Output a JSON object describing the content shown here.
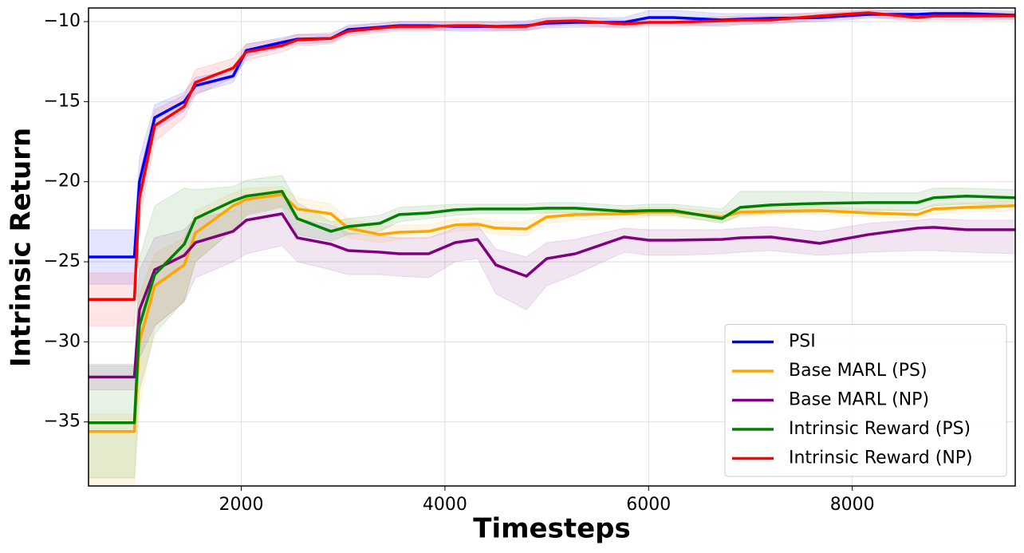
{
  "chart_data": {
    "type": "line",
    "xlabel": "Timesteps",
    "ylabel": "Intrinsic Return",
    "xlim": [
      500,
      9600
    ],
    "ylim": [
      -39,
      -9.15
    ],
    "xticks": [
      2000,
      4000,
      6000,
      8000
    ],
    "yticks": [
      {
        "value": -10,
        "label": "−10"
      },
      {
        "value": -15,
        "label": "−15"
      },
      {
        "value": -20,
        "label": "−20"
      },
      {
        "value": -25,
        "label": "−25"
      },
      {
        "value": -30,
        "label": "−30"
      },
      {
        "value": -35,
        "label": "−35"
      }
    ],
    "grid": true,
    "legend": "lower right",
    "x": [
      500,
      950,
      1000,
      1150,
      1440,
      1550,
      1920,
      2050,
      2400,
      2550,
      2880,
      3050,
      3360,
      3550,
      3840,
      4100,
      4320,
      4500,
      4800,
      5000,
      5280,
      5760,
      6000,
      6240,
      6720,
      6900,
      7200,
      7680,
      8160,
      8640,
      8800,
      9120,
      9600
    ],
    "series": [
      {
        "name": "PSI",
        "color": "#0000ff",
        "values": [
          -24.7,
          -24.7,
          -20,
          -16,
          -15.0,
          -14.0,
          -13.4,
          -11.8,
          -11.3,
          -11.1,
          -11.05,
          -10.5,
          -10.35,
          -10.25,
          -10.25,
          -10.3,
          -10.3,
          -10.3,
          -10.25,
          -10.1,
          -10.05,
          -10.05,
          -9.75,
          -9.75,
          -9.9,
          -9.85,
          -9.8,
          -9.75,
          -9.55,
          -9.55,
          -9.5,
          -9.5,
          -9.6
        ],
        "lower": [
          -26.4,
          -26.4,
          -21.5,
          -16.8,
          -15.6,
          -14.5,
          -13.8,
          -12.2,
          -11.6,
          -11.4,
          -11.3,
          -10.8,
          -10.6,
          -10.5,
          -10.5,
          -10.6,
          -10.6,
          -10.6,
          -10.55,
          -10.4,
          -10.35,
          -10.35,
          -10.2,
          -10.2,
          -10.3,
          -10.2,
          -10.1,
          -10.0,
          -9.8,
          -9.8,
          -9.75,
          -9.75,
          -9.85
        ],
        "upper": [
          -23.0,
          -23.0,
          -18.5,
          -15.2,
          -14.4,
          -13.5,
          -13.0,
          -11.4,
          -11.0,
          -10.8,
          -10.8,
          -10.2,
          -10.1,
          -10.0,
          -10.0,
          -10.0,
          -10.0,
          -10.0,
          -9.95,
          -9.8,
          -9.75,
          -9.75,
          -9.3,
          -9.3,
          -9.5,
          -9.5,
          -9.5,
          -9.5,
          -9.3,
          -9.3,
          -9.25,
          -9.25,
          -9.35
        ]
      },
      {
        "name": "Base MARL (PS)",
        "color": "#ffa500",
        "values": [
          -35.6,
          -35.6,
          -30,
          -26.5,
          -25.2,
          -23.2,
          -21.5,
          -21.1,
          -20.8,
          -21.7,
          -22.0,
          -22.9,
          -23.3,
          -23.15,
          -23.1,
          -22.7,
          -22.65,
          -22.9,
          -22.95,
          -22.2,
          -22.05,
          -22.0,
          -21.9,
          -21.9,
          -22.2,
          -21.9,
          -21.85,
          -21.8,
          -21.95,
          -22.05,
          -21.7,
          -21.6,
          -21.5
        ],
        "lower": [
          -39.5,
          -39.5,
          -34,
          -29,
          -27.5,
          -25,
          -23,
          -22,
          -21.5,
          -22.3,
          -22.5,
          -23.5,
          -23.8,
          -23.6,
          -23.5,
          -23.1,
          -23.0,
          -23.3,
          -23.4,
          -22.6,
          -22.4,
          -22.3,
          -22.2,
          -22.2,
          -22.5,
          -22.2,
          -22.1,
          -22.05,
          -22.2,
          -22.3,
          -22.0,
          -21.9,
          -21.8
        ],
        "upper": [
          -34.5,
          -34.5,
          -27,
          -24.5,
          -23.5,
          -21.8,
          -20.7,
          -20.4,
          -20.3,
          -21.0,
          -21.4,
          -22.3,
          -22.8,
          -22.7,
          -22.7,
          -22.3,
          -22.3,
          -22.5,
          -22.5,
          -21.8,
          -21.7,
          -21.7,
          -21.6,
          -21.6,
          -21.9,
          -21.6,
          -21.6,
          -21.55,
          -21.7,
          -21.8,
          -21.4,
          -21.3,
          -21.2
        ]
      },
      {
        "name": "Base MARL (NP)",
        "color": "#800080",
        "values": [
          -32.2,
          -32.2,
          -28,
          -25.5,
          -24.6,
          -23.8,
          -23.1,
          -22.4,
          -22.0,
          -23.5,
          -23.9,
          -24.3,
          -24.4,
          -24.5,
          -24.5,
          -23.8,
          -23.6,
          -25.2,
          -25.9,
          -24.8,
          -24.5,
          -23.45,
          -23.65,
          -23.65,
          -23.6,
          -23.5,
          -23.45,
          -23.85,
          -23.3,
          -22.9,
          -22.85,
          -23.0,
          -23.0
        ],
        "lower": [
          -33,
          -33,
          -31,
          -29,
          -27.5,
          -26,
          -25,
          -24.5,
          -24,
          -25,
          -25.5,
          -25.8,
          -25.8,
          -25.9,
          -26,
          -25,
          -24.8,
          -27,
          -28,
          -26.5,
          -25.8,
          -24.4,
          -24.6,
          -24.6,
          -24.5,
          -24.4,
          -24.3,
          -24.6,
          -24.4,
          -24.3,
          -24.3,
          -24.4,
          -24.5
        ],
        "upper": [
          -31.4,
          -31.4,
          -25.5,
          -23.5,
          -23,
          -22.3,
          -21.8,
          -21,
          -20.8,
          -22.3,
          -22.7,
          -23.2,
          -23.4,
          -23.5,
          -23.5,
          -22.9,
          -22.7,
          -24.2,
          -24.7,
          -23.8,
          -23.6,
          -22.9,
          -23.0,
          -23.0,
          -23.0,
          -22.9,
          -22.8,
          -23.1,
          -22.6,
          -22.4,
          -22.3,
          -22.4,
          -22.4
        ]
      },
      {
        "name": "Intrinsic Reward (PS)",
        "color": "#008000",
        "values": [
          -35.05,
          -35.05,
          -29,
          -25.8,
          -23.9,
          -22.3,
          -21.2,
          -20.9,
          -20.6,
          -22.3,
          -23.1,
          -22.8,
          -22.6,
          -22.05,
          -21.95,
          -21.75,
          -21.7,
          -21.7,
          -21.7,
          -21.65,
          -21.65,
          -21.85,
          -21.8,
          -21.8,
          -22.3,
          -21.6,
          -21.45,
          -21.35,
          -21.3,
          -21.3,
          -21.0,
          -20.9,
          -21.0
        ],
        "lower": [
          -38.5,
          -38.5,
          -33,
          -29.5,
          -27.4,
          -25,
          -23,
          -22.1,
          -21.6,
          -23.3,
          -23.7,
          -23.3,
          -23.1,
          -22.5,
          -22.3,
          -22.1,
          -22.0,
          -22.0,
          -22.0,
          -21.95,
          -21.95,
          -22.1,
          -22.1,
          -22.1,
          -22.6,
          -22.1,
          -22.0,
          -21.9,
          -21.8,
          -21.8,
          -21.5,
          -21.4,
          -21.5
        ],
        "upper": [
          -31.5,
          -31.5,
          -24.8,
          -21.5,
          -20.4,
          -20.5,
          -20.3,
          -19.9,
          -19.6,
          -21.3,
          -22.5,
          -22.3,
          -22.1,
          -21.6,
          -21.5,
          -21.4,
          -21.4,
          -21.4,
          -21.4,
          -21.3,
          -21.3,
          -21.5,
          -21.4,
          -21.4,
          -21.7,
          -20.6,
          -20.6,
          -20.6,
          -20.7,
          -20.7,
          -20.4,
          -20.4,
          -20.5
        ]
      },
      {
        "name": "Intrinsic Reward (NP)",
        "color": "#ff0000",
        "values": [
          -27.35,
          -27.35,
          -21,
          -16.5,
          -15.3,
          -13.8,
          -12.9,
          -11.9,
          -11.5,
          -11.15,
          -11.05,
          -10.6,
          -10.4,
          -10.3,
          -10.3,
          -10.25,
          -10.25,
          -10.3,
          -10.3,
          -10.0,
          -9.95,
          -10.15,
          -10.05,
          -10.05,
          -9.95,
          -9.9,
          -9.9,
          -9.65,
          -9.45,
          -9.75,
          -9.65,
          -9.65,
          -9.65
        ],
        "lower": [
          -29.0,
          -29.0,
          -22.5,
          -17.5,
          -16.0,
          -14.6,
          -13.5,
          -12.4,
          -11.9,
          -11.5,
          -11.4,
          -10.9,
          -10.7,
          -10.6,
          -10.6,
          -10.5,
          -10.5,
          -10.55,
          -10.55,
          -10.3,
          -10.2,
          -10.4,
          -10.3,
          -10.3,
          -10.2,
          -10.15,
          -10.15,
          -9.9,
          -9.7,
          -10.0,
          -9.9,
          -9.9,
          -9.9
        ],
        "upper": [
          -25.7,
          -25.7,
          -19.5,
          -15.5,
          -14.6,
          -13.0,
          -12.3,
          -11.4,
          -11.1,
          -10.8,
          -10.7,
          -10.3,
          -10.1,
          -10.0,
          -10.0,
          -10.0,
          -10.0,
          -10.05,
          -10.05,
          -9.75,
          -9.7,
          -9.9,
          -9.8,
          -9.8,
          -9.7,
          -9.65,
          -9.65,
          -9.4,
          -9.2,
          -9.5,
          -9.4,
          -9.4,
          -9.4
        ]
      }
    ]
  }
}
